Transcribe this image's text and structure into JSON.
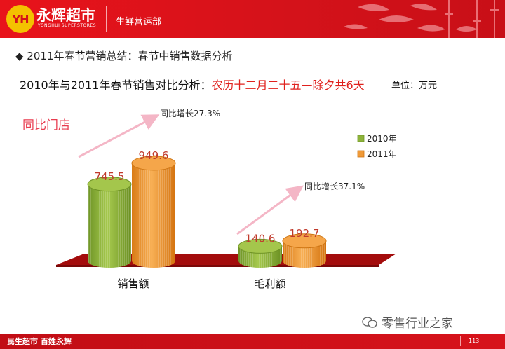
{
  "header": {
    "logo_mark": "YH",
    "logo_text": "永辉超市",
    "logo_en": "YONGHUI SUPERSTORES",
    "department": "生鲜营运部"
  },
  "title": "◆ 2011年春节营销总结：春节中销售数据分析",
  "subtitle": {
    "prefix": "2010年与2011年春节销售对比分析：",
    "highlight": "农历十二月二十五—除夕共6天"
  },
  "unit": "单位：万元",
  "store_label": "同比门店",
  "chart_data": {
    "type": "bar",
    "categories": [
      "销售额",
      "毛利额"
    ],
    "series": [
      {
        "name": "2010年",
        "values": [
          745.5,
          140.6
        ],
        "color": "#8db33a"
      },
      {
        "name": "2011年",
        "values": [
          949.6,
          192.7
        ],
        "color": "#f09a37"
      }
    ],
    "data_labels": [
      [
        "745.5",
        "140.6"
      ],
      [
        "949.6",
        "192.7"
      ]
    ],
    "annotations": [
      "同比增长27.3%",
      "同比增长37.1%"
    ],
    "legend_position": "right",
    "style": "3d-cylinder",
    "colors": {
      "label": "#c0392b",
      "arrow": "#f4b6c6",
      "floor": "#a30c0c"
    }
  },
  "footer": {
    "left": "民生超市    百姓永辉",
    "page": "113"
  },
  "watermark": "零售行业之家"
}
